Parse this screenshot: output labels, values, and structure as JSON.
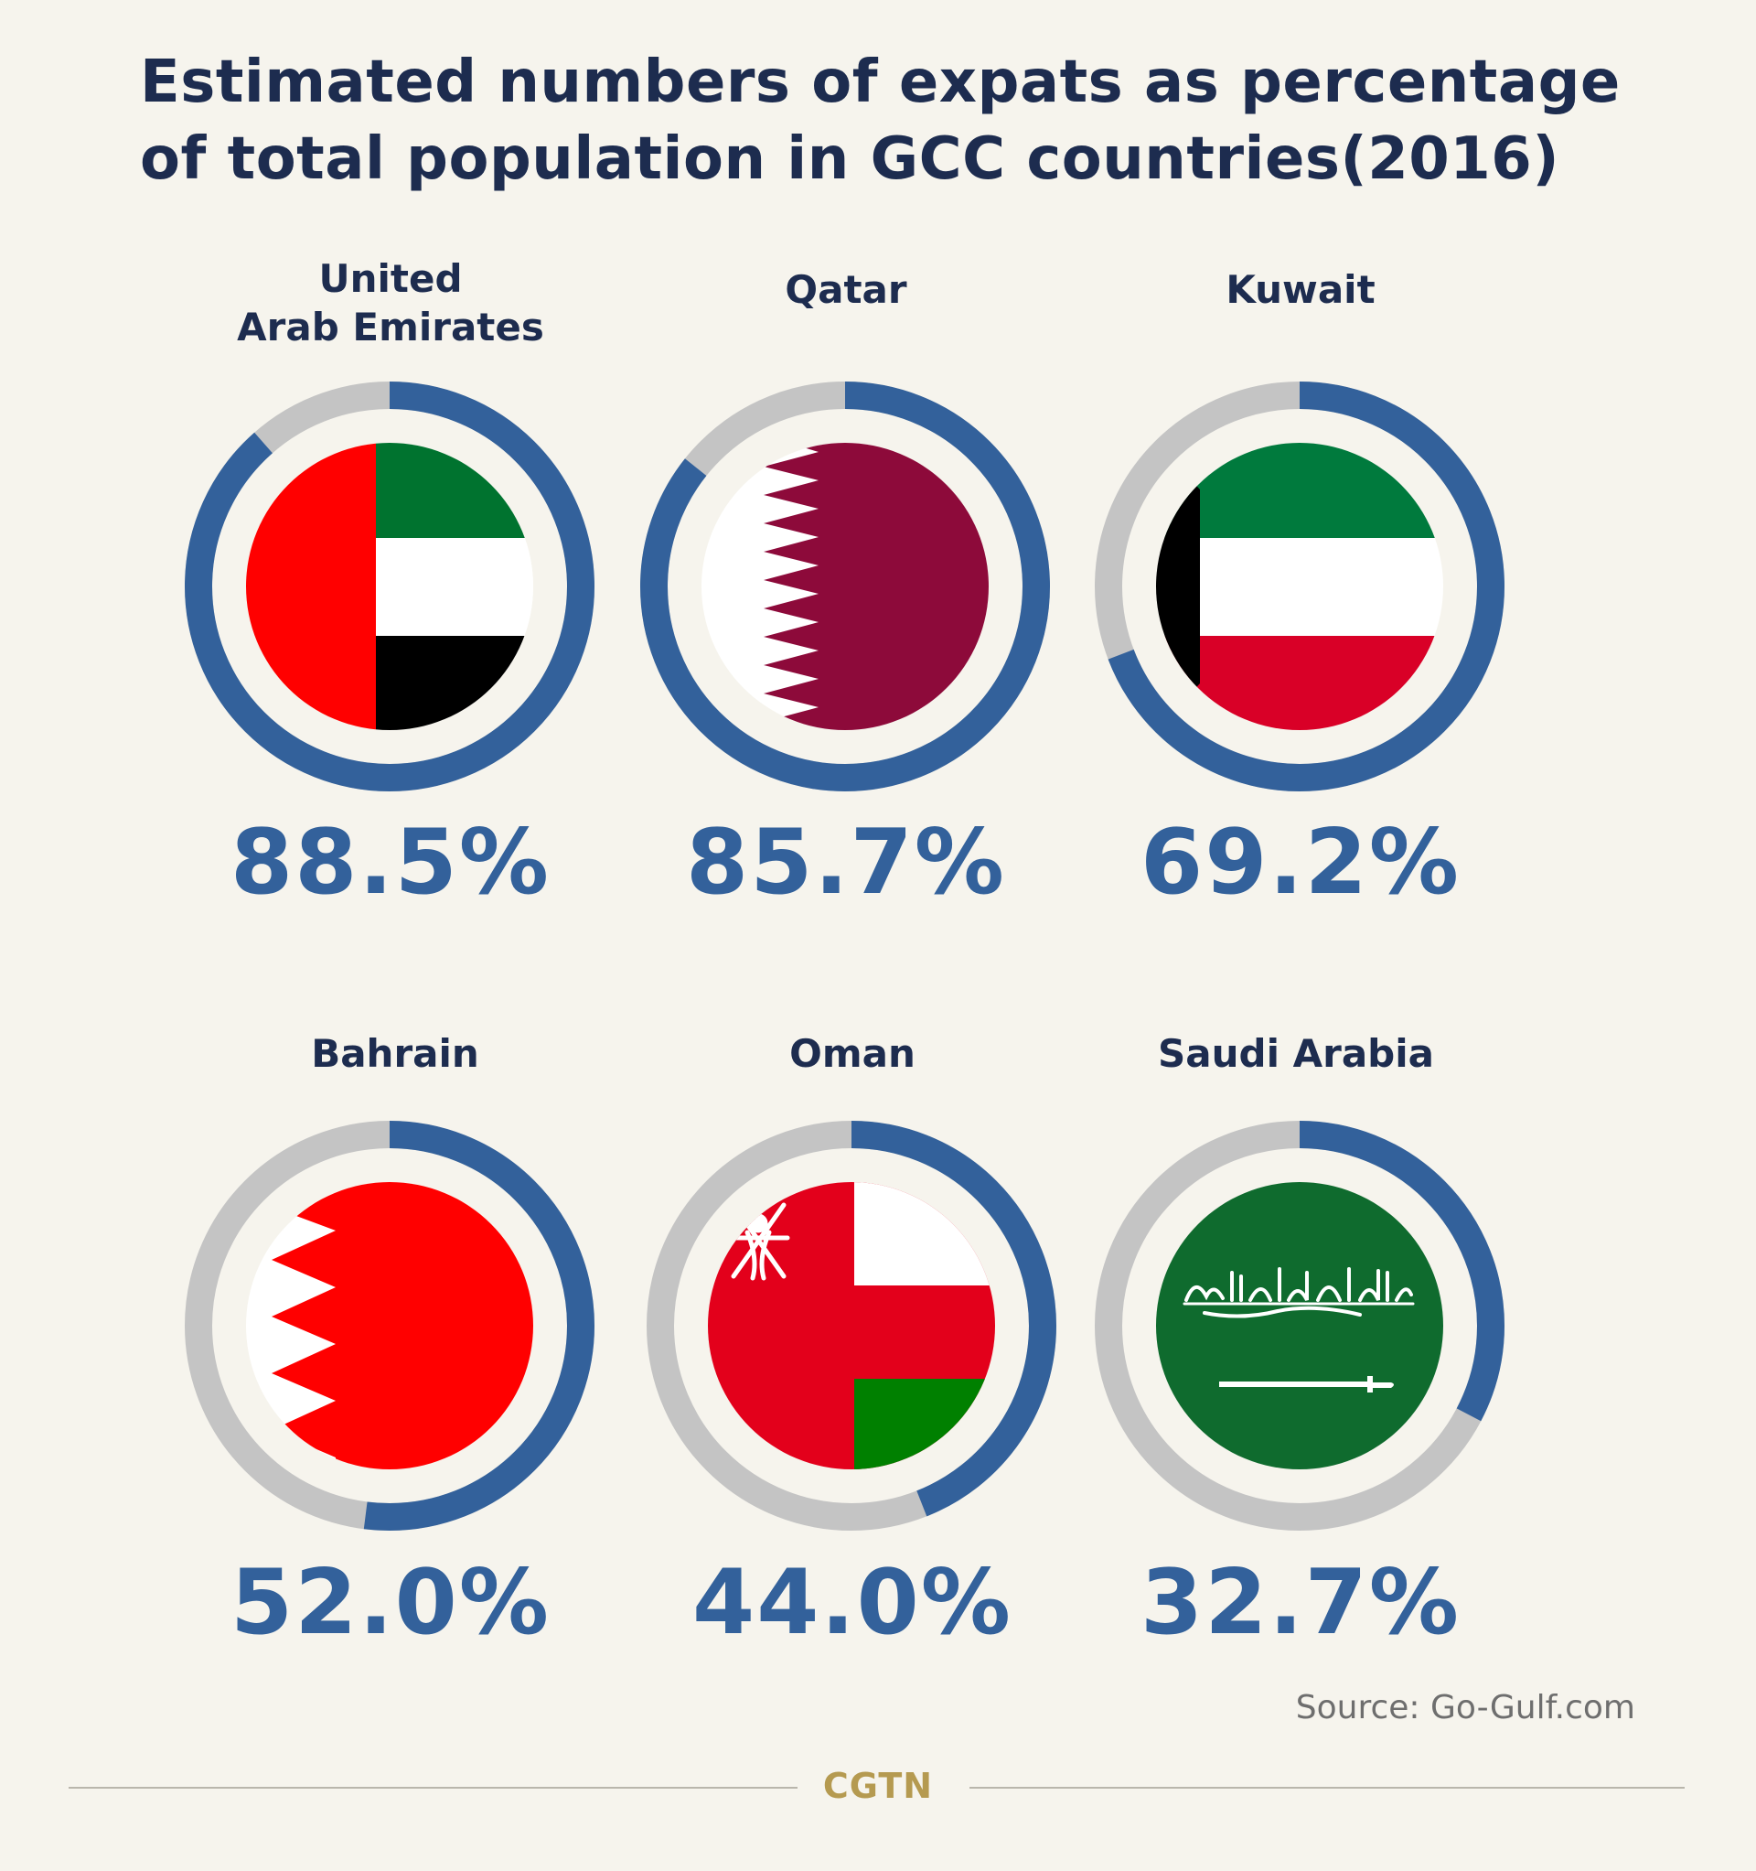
{
  "title": "Estimated numbers of expats as percentage of total population in GCC countries(2016)",
  "source": "Source: Go-Gulf.com",
  "brand": "CGTN",
  "colors": {
    "background": "#f6f4ed",
    "title": "#1d2c4f",
    "progress": "#33619b",
    "track": "#c4c4c4",
    "brand": "#b59a50"
  },
  "chart_data": {
    "type": "donut-progress",
    "title": "Estimated numbers of expats as percentage of total population in GCC countries(2016)",
    "unit": "%",
    "max": 100,
    "items": [
      {
        "country": "United\nArab Emirates",
        "value": 88.5,
        "label": "88.5%",
        "flag": "uae-flag"
      },
      {
        "country": "Qatar",
        "value": 85.7,
        "label": "85.7%",
        "flag": "qatar-flag"
      },
      {
        "country": "Kuwait",
        "value": 69.2,
        "label": "69.2%",
        "flag": "kuwait-flag"
      },
      {
        "country": "Bahrain",
        "value": 52.0,
        "label": "52.0%",
        "flag": "bahrain-flag"
      },
      {
        "country": "Oman",
        "value": 44.0,
        "label": "44.0%",
        "flag": "oman-flag"
      },
      {
        "country": "Saudi Arabia",
        "value": 32.7,
        "label": "32.7%",
        "flag": "saudi-arabia-flag"
      }
    ]
  }
}
